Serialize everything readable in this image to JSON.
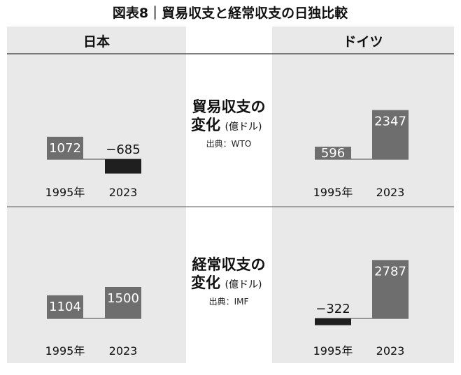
{
  "title": "図表8｜貿易収支と経常収支の日独比較",
  "headers": {
    "left": "日本",
    "right": "ドイツ"
  },
  "middle": {
    "trade": {
      "line1": "貿易収支の",
      "line2a": "変化",
      "line2b": "(億ドル)",
      "source": "出典：WTO"
    },
    "current": {
      "line1": "経常収支の",
      "line2a": "変化",
      "line2b": "(億ドル)",
      "source": "出典：IMF"
    }
  },
  "colors": {
    "positive_bar": "#6e6e6e",
    "negative_bar": "#1f1f1f",
    "panel": "#e9e9e9"
  },
  "chart_data": [
    {
      "type": "bar",
      "title": "貿易収支の変化(億ドル)",
      "country": "日本",
      "categories": [
        "1995年",
        "2023"
      ],
      "values": [
        1072,
        -685
      ],
      "labels": [
        "1072",
        "−685"
      ]
    },
    {
      "type": "bar",
      "title": "貿易収支の変化(億ドル)",
      "country": "ドイツ",
      "categories": [
        "1995年",
        "2023"
      ],
      "values": [
        596,
        2347
      ],
      "labels": [
        "596",
        "2347"
      ]
    },
    {
      "type": "bar",
      "title": "経常収支の変化(億ドル)",
      "country": "日本",
      "categories": [
        "1995年",
        "2023"
      ],
      "values": [
        1104,
        1500
      ],
      "labels": [
        "1104",
        "1500"
      ]
    },
    {
      "type": "bar",
      "title": "経常収支の変化(億ドル)",
      "country": "ドイツ",
      "categories": [
        "1995年",
        "2023"
      ],
      "values": [
        -322,
        2787
      ],
      "labels": [
        "−322",
        "2787"
      ]
    }
  ]
}
